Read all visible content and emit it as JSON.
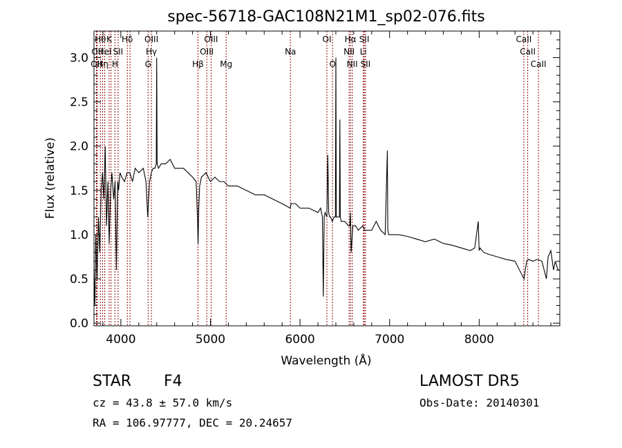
{
  "chart_data": {
    "type": "line",
    "title": "spec-56718-GAC108N21M1_sp02-076.fits",
    "xlabel": "Wavelength (Å)",
    "ylabel": "Flux (relative)",
    "xlim": [
      3700,
      8900
    ],
    "ylim": [
      -0.03,
      3.3
    ],
    "x_ticks": [
      4000,
      5000,
      6000,
      7000,
      8000
    ],
    "y_ticks": [
      0.0,
      0.5,
      1.0,
      1.5,
      2.0,
      2.5,
      3.0
    ],
    "x_tick_labels": [
      "4000",
      "5000",
      "6000",
      "7000",
      "8000"
    ],
    "y_tick_labels": [
      "0.0",
      "0.5",
      "1.0",
      "1.5",
      "2.0",
      "2.5",
      "3.0"
    ],
    "grid": false,
    "line_color": "#000000",
    "marker_color": "#8b0000",
    "series": [
      {
        "x": [
          3700,
          3710,
          3720,
          3735,
          3750,
          3765,
          3780,
          3795,
          3810,
          3825,
          3840,
          3855,
          3870,
          3885,
          3900,
          3920,
          3935,
          3950,
          3965,
          3975,
          3990,
          4010,
          4040,
          4070,
          4100,
          4130,
          4160,
          4200,
          4250,
          4280,
          4300,
          4320,
          4340,
          4360,
          4380,
          4395,
          4400,
          4405,
          4420,
          4450,
          4500,
          4550,
          4600,
          4650,
          4700,
          4750,
          4800,
          4840,
          4855,
          4862,
          4870,
          4880,
          4900,
          4950,
          5000,
          5050,
          5100,
          5150,
          5200,
          5250,
          5300,
          5400,
          5500,
          5600,
          5700,
          5800,
          5890,
          5900,
          5950,
          6000,
          6100,
          6200,
          6230,
          6250,
          6260,
          6270,
          6280,
          6300,
          6310,
          6320,
          6330,
          6340,
          6360,
          6380,
          6395,
          6400,
          6405,
          6420,
          6440,
          6445,
          6450,
          6460,
          6500,
          6540,
          6555,
          6563,
          6570,
          6590,
          6620,
          6650,
          6700,
          6720,
          6750,
          6800,
          6850,
          6900,
          6950,
          6975,
          6980,
          6990,
          7000,
          7050,
          7100,
          7200,
          7300,
          7400,
          7500,
          7600,
          7700,
          7800,
          7900,
          7950,
          7990,
          8000,
          8010,
          8050,
          8100,
          8200,
          8300,
          8400,
          8500,
          8530,
          8550,
          8600,
          8650,
          8700,
          8750,
          8770,
          8800,
          8830,
          8850,
          8880,
          8900
        ],
        "y": [
          0.6,
          0.2,
          1.0,
          0.5,
          1.2,
          0.8,
          1.5,
          1.7,
          1.4,
          2.0,
          1.1,
          1.6,
          0.9,
          1.5,
          1.7,
          1.4,
          1.6,
          0.6,
          1.6,
          1.5,
          1.7,
          1.65,
          1.6,
          1.7,
          1.7,
          1.6,
          1.75,
          1.7,
          1.75,
          1.6,
          1.2,
          1.6,
          1.7,
          1.75,
          1.75,
          1.8,
          3.0,
          1.8,
          1.75,
          1.8,
          1.8,
          1.85,
          1.75,
          1.75,
          1.75,
          1.7,
          1.65,
          1.6,
          1.2,
          0.9,
          1.3,
          1.55,
          1.65,
          1.7,
          1.6,
          1.65,
          1.6,
          1.6,
          1.55,
          1.55,
          1.55,
          1.5,
          1.45,
          1.45,
          1.4,
          1.35,
          1.3,
          1.35,
          1.35,
          1.3,
          1.3,
          1.25,
          1.3,
          1.2,
          0.3,
          1.2,
          1.25,
          1.2,
          1.9,
          1.25,
          1.2,
          1.2,
          1.15,
          1.2,
          1.2,
          3.0,
          1.2,
          1.2,
          1.2,
          2.3,
          1.2,
          1.15,
          1.15,
          1.1,
          1.1,
          1.25,
          0.8,
          1.1,
          1.1,
          1.05,
          1.1,
          1.05,
          1.05,
          1.05,
          1.15,
          1.05,
          1.0,
          1.95,
          1.05,
          1.0,
          1.0,
          1.0,
          1.0,
          0.98,
          0.95,
          0.92,
          0.95,
          0.9,
          0.88,
          0.85,
          0.82,
          0.85,
          1.15,
          0.82,
          0.85,
          0.8,
          0.78,
          0.75,
          0.72,
          0.7,
          0.5,
          0.7,
          0.72,
          0.7,
          0.72,
          0.7,
          0.5,
          0.75,
          0.82,
          0.6,
          0.7,
          0.6,
          0.6
        ]
      }
    ],
    "lines": [
      {
        "w": 3727,
        "labels": [
          "OII"
        ],
        "row": [
          2
        ]
      },
      {
        "w": 3736,
        "labels": [
          "OII"
        ],
        "row": [
          1
        ]
      },
      {
        "w": 3771,
        "labels": [
          "Hθ"
        ],
        "row": [
          0
        ]
      },
      {
        "w": 3797,
        "labels": [
          "Hη"
        ],
        "row": [
          2
        ]
      },
      {
        "w": 3820,
        "labels": [
          "HeI"
        ],
        "row": [
          1
        ]
      },
      {
        "w": 3869,
        "labels": [
          "K"
        ],
        "row": [
          0
        ]
      },
      {
        "w": 3890,
        "labels": [],
        "row": []
      },
      {
        "w": 3934,
        "labels": [
          "H"
        ],
        "row": [
          2
        ]
      },
      {
        "w": 3969,
        "labels": [
          "SII"
        ],
        "row": [
          1
        ]
      },
      {
        "w": 4072,
        "labels": [
          "Hδ"
        ],
        "row": [
          0
        ]
      },
      {
        "w": 4102,
        "labels": [],
        "row": []
      },
      {
        "w": 4304,
        "labels": [
          "G"
        ],
        "row": [
          2
        ]
      },
      {
        "w": 4341,
        "labels": [
          "OIII",
          "Hγ"
        ],
        "row": [
          0,
          1
        ]
      },
      {
        "w": 4861,
        "labels": [
          "Hβ"
        ],
        "row": [
          2
        ]
      },
      {
        "w": 4959,
        "labels": [
          "OIII"
        ],
        "row": [
          1
        ]
      },
      {
        "w": 5007,
        "labels": [
          "OIII"
        ],
        "row": [
          0
        ]
      },
      {
        "w": 5175,
        "labels": [
          "Mg"
        ],
        "row": [
          2
        ]
      },
      {
        "w": 5893,
        "labels": [
          "Na"
        ],
        "row": [
          1
        ]
      },
      {
        "w": 6300,
        "labels": [
          "OI"
        ],
        "row": [
          0
        ]
      },
      {
        "w": 6363,
        "labels": [
          "O"
        ],
        "row": [
          2
        ]
      },
      {
        "w": 6548,
        "labels": [
          "NII"
        ],
        "row": [
          1
        ]
      },
      {
        "w": 6563,
        "labels": [
          "Hα"
        ],
        "row": [
          0
        ]
      },
      {
        "w": 6583,
        "labels": [
          "NII"
        ],
        "row": [
          2
        ]
      },
      {
        "w": 6707,
        "labels": [
          "Li"
        ],
        "row": [
          1
        ]
      },
      {
        "w": 6717,
        "labels": [
          "SII"
        ],
        "row": [
          0
        ]
      },
      {
        "w": 6731,
        "labels": [
          "SII"
        ],
        "row": [
          2
        ]
      },
      {
        "w": 8498,
        "labels": [
          "CaII"
        ],
        "row": [
          0
        ]
      },
      {
        "w": 8542,
        "labels": [
          "CaII"
        ],
        "row": [
          1
        ]
      },
      {
        "w": 8662,
        "labels": [
          "CaII"
        ],
        "row": [
          2
        ]
      }
    ]
  },
  "info": {
    "class": "STAR",
    "subclass": "F4",
    "survey": "LAMOST DR5",
    "cz": "cz = 43.8 ± 57.0 km/s",
    "obs_date": "Obs-Date: 20140301",
    "coords": "RA = 106.97777, DEC =  20.24657"
  }
}
